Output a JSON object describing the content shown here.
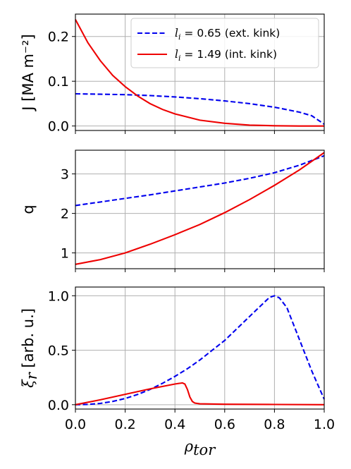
{
  "chart_data": [
    {
      "type": "line",
      "ylabel": "J [MA m⁻²]",
      "ylim": [
        -0.01,
        0.25
      ],
      "yticks": [
        "0.0",
        "0.1",
        "0.2"
      ],
      "ytick_values": [
        0.0,
        0.1,
        0.2
      ],
      "xlim": [
        0.0,
        1.0
      ],
      "grid": true,
      "legend_placement": "top-right",
      "series": [
        {
          "name_prefix": "l",
          "name_sub": "i",
          "name_rest": " = 0.65 (ext. kink)",
          "color": "#0000ee",
          "style": "dashed",
          "x": [
            0.0,
            0.1,
            0.2,
            0.3,
            0.4,
            0.5,
            0.6,
            0.7,
            0.8,
            0.9,
            0.95,
            1.0
          ],
          "y": [
            0.072,
            0.071,
            0.07,
            0.068,
            0.065,
            0.061,
            0.056,
            0.05,
            0.042,
            0.031,
            0.023,
            0.004
          ]
        },
        {
          "name_prefix": "l",
          "name_sub": "i",
          "name_rest": " = 1.49 (int. kink)",
          "color": "#ee0000",
          "style": "solid",
          "x": [
            0.0,
            0.05,
            0.1,
            0.15,
            0.2,
            0.25,
            0.3,
            0.35,
            0.4,
            0.5,
            0.6,
            0.7,
            0.8,
            0.9,
            1.0
          ],
          "y": [
            0.238,
            0.186,
            0.146,
            0.113,
            0.088,
            0.067,
            0.05,
            0.037,
            0.027,
            0.013,
            0.006,
            0.002,
            0.0005,
            0.0,
            0.0
          ]
        }
      ]
    },
    {
      "type": "line",
      "ylabel": "q",
      "ylim": [
        0.6,
        3.6
      ],
      "yticks": [
        "1",
        "2",
        "3"
      ],
      "ytick_values": [
        1,
        2,
        3
      ],
      "xlim": [
        0.0,
        1.0
      ],
      "grid": true,
      "series": [
        {
          "color": "#0000ee",
          "style": "dashed",
          "x": [
            0.0,
            0.1,
            0.2,
            0.3,
            0.4,
            0.5,
            0.6,
            0.7,
            0.8,
            0.9,
            1.0
          ],
          "y": [
            2.2,
            2.29,
            2.38,
            2.47,
            2.57,
            2.67,
            2.77,
            2.89,
            3.03,
            3.22,
            3.46
          ]
        },
        {
          "color": "#ee0000",
          "style": "solid",
          "x": [
            0.0,
            0.1,
            0.2,
            0.3,
            0.4,
            0.5,
            0.6,
            0.7,
            0.8,
            0.9,
            1.0
          ],
          "y": [
            0.71,
            0.83,
            1.0,
            1.22,
            1.46,
            1.72,
            2.02,
            2.35,
            2.71,
            3.1,
            3.54
          ]
        }
      ]
    },
    {
      "type": "line",
      "ylabel_symbol": "ξ",
      "ylabel_sub": "r",
      "ylabel_rest": " [arb. u.]",
      "ylim": [
        -0.04,
        1.08
      ],
      "yticks": [
        "0.0",
        "0.5",
        "1.0"
      ],
      "ytick_values": [
        0.0,
        0.5,
        1.0
      ],
      "xlim": [
        0.0,
        1.0
      ],
      "xticks": [
        "0.0",
        "0.2",
        "0.4",
        "0.6",
        "0.8",
        "1.0"
      ],
      "xtick_values": [
        0.0,
        0.2,
        0.4,
        0.6,
        0.8,
        1.0
      ],
      "xlabel_symbol": "ρ",
      "xlabel_sub": "tor",
      "grid": true,
      "series": [
        {
          "color": "#0000ee",
          "style": "dashed",
          "x": [
            0.0,
            0.05,
            0.1,
            0.15,
            0.2,
            0.25,
            0.3,
            0.35,
            0.4,
            0.45,
            0.5,
            0.55,
            0.6,
            0.65,
            0.7,
            0.75,
            0.78,
            0.8,
            0.82,
            0.85,
            0.9,
            0.95,
            1.0
          ],
          "y": [
            0.0,
            0.003,
            0.012,
            0.03,
            0.057,
            0.094,
            0.14,
            0.196,
            0.26,
            0.33,
            0.41,
            0.5,
            0.59,
            0.7,
            0.81,
            0.92,
            0.985,
            1.0,
            0.98,
            0.89,
            0.6,
            0.31,
            0.05
          ]
        },
        {
          "color": "#ee0000",
          "style": "solid",
          "x": [
            0.0,
            0.1,
            0.2,
            0.3,
            0.4,
            0.43,
            0.44,
            0.45,
            0.46,
            0.47,
            0.48,
            0.5,
            0.6,
            0.8,
            1.0
          ],
          "y": [
            0.0,
            0.045,
            0.095,
            0.145,
            0.19,
            0.2,
            0.19,
            0.14,
            0.07,
            0.03,
            0.015,
            0.008,
            0.004,
            0.002,
            0.0
          ]
        }
      ]
    }
  ]
}
